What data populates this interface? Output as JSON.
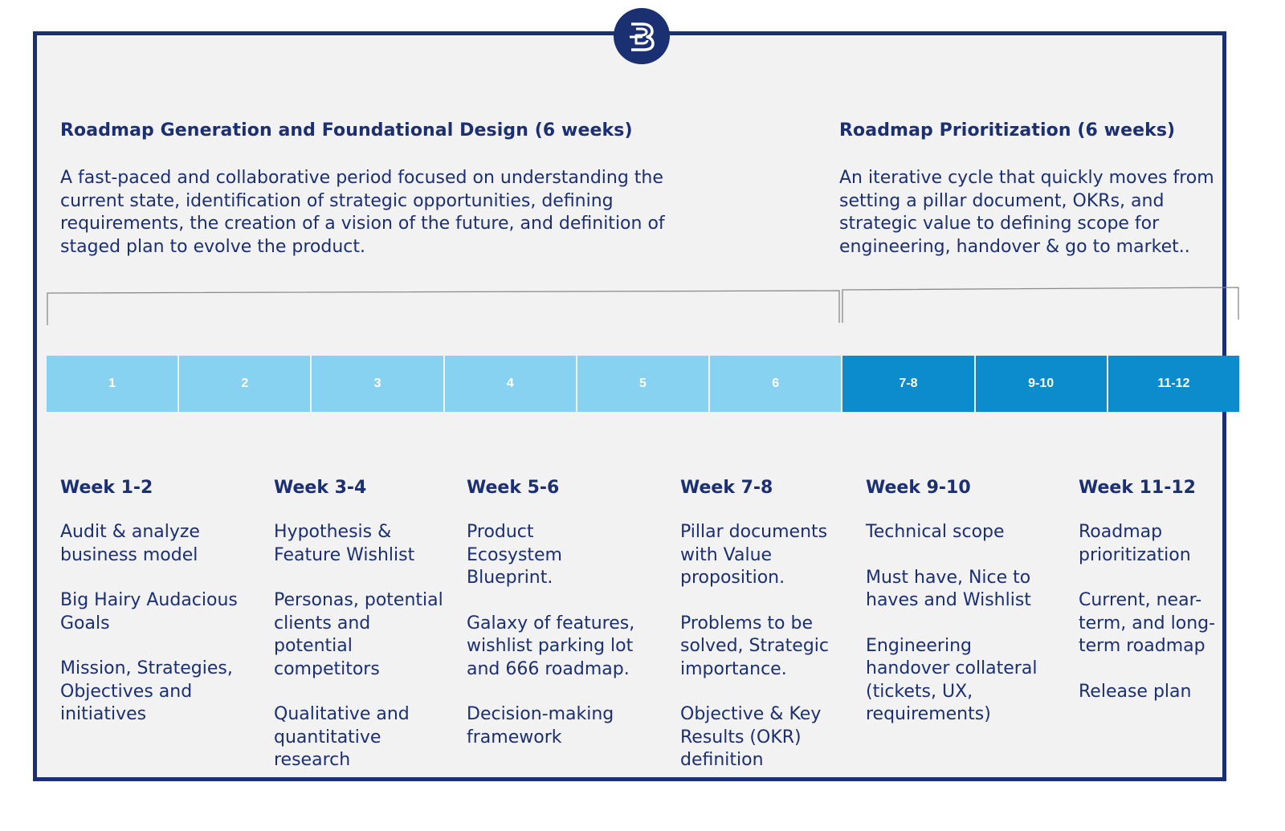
{
  "logo": {
    "icon": "b-monogram-icon",
    "color": "#1b2f73"
  },
  "phases": [
    {
      "title": "Roadmap Generation and Foundational Design (6 weeks)",
      "description": "A fast-paced and collaborative period focused on understanding the current state, identification of strategic opportunities, defining requirements, the creation of a vision of the future, and definition of staged plan to evolve the product."
    },
    {
      "title": "Roadmap Prioritization (6 weeks)",
      "description": "An iterative cycle that quickly moves from setting a pillar document, OKRs, and strategic value to defining scope for engineering, handover & go to market.."
    }
  ],
  "timeline": {
    "light_color": "#87d2f1",
    "dark_color": "#0c8ccd",
    "segments": [
      "1",
      "2",
      "3",
      "4",
      "5",
      "6",
      "7-8",
      "9-10",
      "11-12"
    ]
  },
  "weeks": [
    {
      "title": "Week 1-2",
      "items": [
        "Audit & analyze business model",
        "Big Hairy Audacious Goals",
        "Mission, Strategies, Objectives and initiatives"
      ]
    },
    {
      "title": "Week 3-4",
      "items": [
        "Hypothesis & Feature Wishlist",
        "Personas, potential clients and potential competitors",
        "Qualitative and quantitative research"
      ]
    },
    {
      "title": "Week 5-6",
      "items": [
        "Product Ecosystem Blueprint.",
        "Galaxy of features, wishlist parking lot and 666 roadmap.",
        "Decision-making framework"
      ]
    },
    {
      "title": "Week 7-8",
      "items": [
        "Pillar documents with Value proposition.",
        "Problems to be solved, Strategic importance.",
        "Objective & Key Results (OKR) definition"
      ]
    },
    {
      "title": "Week 9-10",
      "items": [
        "Technical scope",
        "Must have, Nice to haves and Wishlist",
        "Engineering handover collateral (tickets, UX, requirements)"
      ]
    },
    {
      "title": "Week 11-12",
      "items": [
        "Roadmap prioritization",
        "Current, near-term, and long-term roadmap",
        "Release plan"
      ]
    }
  ]
}
